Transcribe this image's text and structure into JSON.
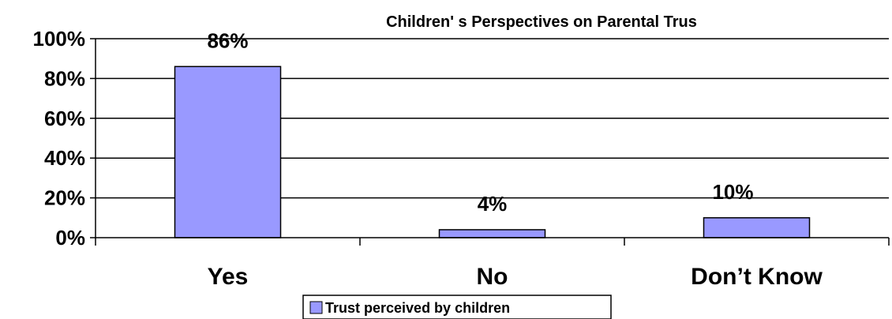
{
  "chart_data": {
    "type": "bar",
    "title": "Children'  s Perspectives on Parental Trus",
    "categories": [
      "Yes",
      "No",
      "Don’t Know"
    ],
    "series": [
      {
        "name": "Trust perceived by children",
        "values": [
          86,
          4,
          10
        ],
        "labels": [
          "86%",
          "4%",
          "10%"
        ],
        "color": "#9999ff"
      }
    ],
    "y_ticks": [
      "0%",
      "20%",
      "40%",
      "60%",
      "80%",
      "100%"
    ],
    "ylim": [
      0,
      100
    ],
    "grid": true,
    "legend": "bottom-center"
  }
}
